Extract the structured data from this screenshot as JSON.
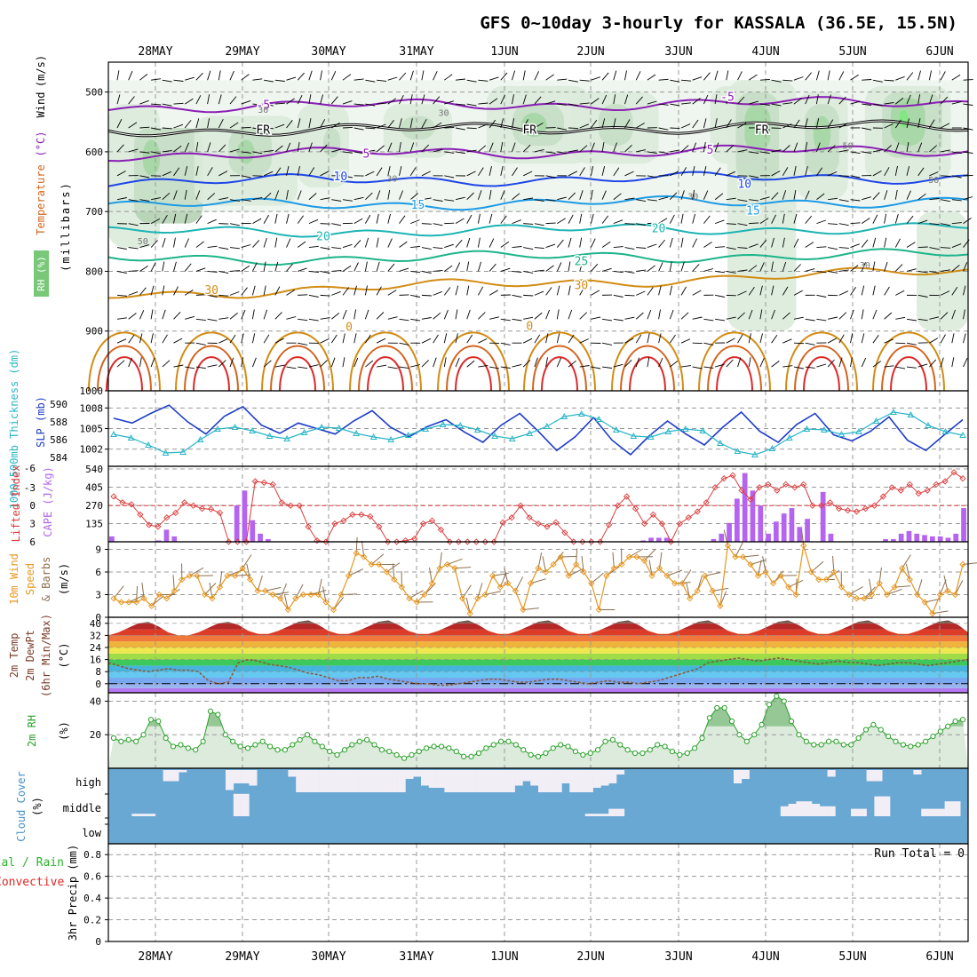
{
  "title": "GFS 0~10day 3-hourly for KASSALA (36.5E, 15.5N)",
  "dates": [
    "28MAY",
    "29MAY",
    "30MAY",
    "31MAY",
    "1JUN",
    "2JUN",
    "3JUN",
    "4JUN",
    "5JUN",
    "6JUN"
  ],
  "colors": {
    "purple": "#8a1eb4",
    "blue": "#1e46e6",
    "lightblue": "#1e9be6",
    "teal": "#1eb4b4",
    "green": "#1eb48a",
    "orange": "#d28c14",
    "darkorange": "#d2641e",
    "red": "#dc2828",
    "rh_light": "#dcebdc",
    "rh_mid": "#b4d2b4",
    "rh_dark": "#78c878",
    "rh_bright": "#32e632",
    "slp": "#1e3cc8",
    "thickness": "#28b4c8",
    "li": "#dc3c3c",
    "cape": "#b464f0",
    "wind": "#e6961e",
    "barb": "#8c6e50",
    "dewpt": "#8c5a3c",
    "rh2m": "#28a028",
    "cloud_bg": "#6aa8d4",
    "cloud_fg": "#f2eef6",
    "precip_rain": "#28b428",
    "precip_conv": "#dc2828"
  },
  "chart_data": [
    {
      "type": "heatmap",
      "panel": "upper-air",
      "ylabel_parts": [
        "RH (%)",
        "Temperature",
        "(°C)",
        "Wind",
        "(m/s)"
      ],
      "ylabel_units": "(millibars)",
      "yticks": [
        500,
        600,
        700,
        800,
        900,
        1000
      ],
      "ylim": [
        1000,
        450
      ],
      "isotherm_labels": [
        "-5",
        "-5",
        "FR",
        "FR",
        "FR",
        "5",
        "5",
        "10",
        "10",
        "15",
        "15",
        "20",
        "20",
        "25",
        "30",
        "30",
        "0",
        "0"
      ],
      "rh_labels": [
        "30",
        "30",
        "30",
        "30",
        "30",
        "50",
        "50",
        "50"
      ],
      "isotherms_c": [
        -5,
        0,
        5,
        10,
        15,
        20,
        25,
        30,
        35,
        40
      ],
      "isotherm_pressure_mb": {
        "-5": 525,
        "0": 565,
        "5": 605,
        "10": 650,
        "15": 690,
        "20": 735,
        "25": 780,
        "30": 840
      }
    },
    {
      "type": "line",
      "panel": "slp-thickness",
      "ylabel_left": "1000-500mb Thickness (dm)",
      "ylabel_right": "SLP (mb)",
      "yticks_left": [
        584,
        586,
        588,
        590
      ],
      "yticks_right": [
        1002,
        1005,
        1008
      ],
      "series": [
        {
          "name": "SLP (mb)",
          "values": [
            1006.5,
            1005.8,
            1007.2,
            1008.4,
            1006.0,
            1004.2,
            1006.8,
            1008.2,
            1005.5,
            1004.3,
            1005.8,
            1005.0,
            1004.2,
            1006.1,
            1007.6,
            1005.2,
            1003.8,
            1005.3,
            1006.3,
            1004.5,
            1003.0,
            1005.5,
            1007.2,
            1004.6,
            1001.8,
            1003.8,
            1006.6,
            1003.3,
            1001.2,
            1003.9,
            1006.1,
            1004.2,
            1002.6,
            1005.2,
            1007.4,
            1004.6,
            1003.0,
            1005.6,
            1007.2,
            1004.1,
            1003.2,
            1004.6,
            1006.7,
            1003.3,
            1001.8,
            1004.1,
            1006.3
          ]
        },
        {
          "name": "1000-500mb Thickness (dm)",
          "values": [
            586.6,
            586.2,
            585.4,
            584.5,
            584.6,
            586.0,
            587.2,
            587.4,
            587.0,
            586.4,
            586.1,
            586.8,
            587.4,
            587.3,
            586.7,
            586.3,
            586.0,
            586.5,
            587.2,
            587.7,
            587.6,
            587.1,
            586.4,
            586.1,
            586.7,
            587.5,
            588.6,
            588.9,
            588.3,
            587.1,
            586.4,
            586.3,
            586.9,
            587.2,
            587.0,
            585.6,
            584.7,
            584.3,
            585.0,
            586.2,
            587.2,
            587.1,
            586.6,
            586.9,
            588.1,
            589.1,
            588.8,
            587.6,
            586.9,
            586.5
          ]
        }
      ]
    },
    {
      "type": "bar",
      "panel": "cape-li",
      "ylabel_left": "Lifted Index",
      "ylabel_right": "CAPE (J/kg)",
      "yticks_left": [
        -3,
        0,
        3,
        6
      ],
      "yticks_left_labels": [
        "-3",
        "0",
        "3",
        "6"
      ],
      "yticks_left_top": "-6",
      "yticks_right": [
        135,
        270,
        405,
        540
      ],
      "yticks_right_labels": [
        "135",
        "270",
        "405",
        "540"
      ],
      "series": [
        {
          "name": "CAPE (J/kg)",
          "values": [
            40,
            0,
            0,
            0,
            0,
            0,
            10,
            90,
            40,
            0,
            0,
            0,
            0,
            0,
            0,
            0,
            270,
            380,
            160,
            60,
            20,
            0,
            0,
            0,
            0,
            0,
            0,
            0,
            0,
            0,
            0,
            0,
            0,
            0,
            0,
            0,
            0,
            0,
            0,
            0,
            0,
            0,
            0,
            0,
            0,
            0,
            0,
            0,
            0,
            0,
            0,
            0,
            0,
            0,
            0,
            0,
            0,
            0,
            0,
            0,
            0,
            0,
            0,
            0,
            0,
            0,
            0,
            0,
            10,
            30,
            30,
            30,
            0,
            0,
            0,
            0,
            0,
            20,
            60,
            140,
            320,
            510,
            380,
            270,
            60,
            150,
            210,
            250,
            110,
            170,
            0,
            370,
            60,
            0,
            0,
            0,
            0,
            0,
            0,
            20,
            20,
            60,
            80,
            60,
            50,
            40,
            40,
            30,
            60,
            250
          ]
        },
        {
          "name": "Lifted Index",
          "values": [
            -1.5,
            -0.5,
            -0.2,
            1.5,
            3.2,
            3.5,
            2.0,
            1.2,
            -0.5,
            0.0,
            0.5,
            0.6,
            1.2,
            6.0,
            6.0,
            6.0,
            -4.0,
            -3.8,
            -3.5,
            -0.5,
            0.0,
            0.0,
            3.5,
            5.8,
            6.0,
            3.0,
            2.5,
            1.5,
            1.5,
            1.8,
            3.5,
            6.0,
            6.0,
            5.8,
            5.5,
            3.0,
            2.5,
            4.0,
            6.0,
            6.0,
            6.0,
            6.0,
            6.0,
            6.0,
            2.8,
            2.0,
            0.0,
            2.0,
            3.0,
            3.5,
            2.8,
            4.5,
            6.0,
            6.0,
            6.0,
            6.0,
            3.2,
            0.0,
            -1.5,
            0.5,
            3.0,
            1.5,
            3.0,
            6.0,
            3.0,
            2.0,
            1.0,
            -0.5,
            -3.0,
            -4.5,
            -5.0,
            -2.5,
            -1.0,
            -3.0,
            -3.5,
            -2.5,
            -3.5,
            -3.0,
            -3.5,
            0.0,
            0.0,
            -0.5,
            0.5,
            0.8,
            1.0,
            0.5,
            0.0,
            -1.5,
            -3.0,
            -2.5,
            -3.5,
            -2.0,
            -2.5,
            -3.5,
            -4.0,
            -5.5,
            -4.5
          ]
        }
      ]
    },
    {
      "type": "line",
      "panel": "wind10m",
      "ylabel_parts": [
        "10m Wind",
        "Speed",
        "& Barbs",
        "(m/s)"
      ],
      "yticks": [
        0,
        3,
        6,
        9
      ],
      "ylim": [
        0,
        10
      ],
      "series": [
        {
          "name": "10m Wind Speed",
          "values": [
            2.5,
            2.0,
            2.0,
            2.0,
            2.5,
            1.5,
            3.0,
            2.5,
            3.5,
            5.0,
            5.5,
            5.5,
            3.0,
            2.5,
            4.0,
            5.5,
            5.5,
            6.5,
            5.0,
            3.5,
            3.5,
            3.0,
            2.5,
            1.0,
            2.5,
            3.0,
            3.0,
            3.0,
            2.0,
            1.0,
            3.0,
            5.5,
            8.5,
            8.0,
            7.0,
            7.0,
            6.0,
            5.0,
            4.0,
            2.5,
            2.0,
            3.0,
            4.5,
            6.5,
            7.0,
            6.5,
            2.5,
            0.5,
            2.5,
            3.0,
            5.5,
            4.0,
            4.5,
            3.5,
            1.0,
            4.5,
            6.5,
            6.0,
            7.0,
            8.0,
            5.5,
            7.0,
            6.0,
            4.5,
            1.0,
            5.5,
            6.5,
            7.0,
            8.0,
            8.0,
            7.5,
            5.5,
            6.5,
            5.5,
            4.5,
            4.5,
            2.5,
            3.5,
            5.5,
            3.5,
            1.5,
            9.5,
            8.0,
            8.0,
            7.0,
            5.5,
            6.0,
            4.5,
            5.5,
            4.0,
            3.0,
            9.5,
            6.0,
            5.0,
            5.0,
            6.0,
            4.0,
            3.0,
            2.5,
            2.5,
            3.0,
            4.5,
            3.0,
            4.0,
            6.5,
            5.0,
            3.0,
            2.0,
            0.5,
            3.0,
            3.5,
            3.0,
            7.0
          ]
        }
      ]
    },
    {
      "type": "area",
      "panel": "temp2m",
      "ylabel_parts": [
        "2m Temp",
        "2m DewPt",
        "(6hr Min/Max)",
        "(°C)"
      ],
      "yticks": [
        0,
        8,
        16,
        24,
        32,
        40
      ],
      "ylim": [
        -6,
        44
      ],
      "series": [
        {
          "name": "2m Temp",
          "values": [
            32,
            34,
            37,
            40,
            41,
            38,
            34,
            32,
            32,
            34,
            37,
            40,
            41,
            39,
            35,
            33,
            33,
            35,
            38,
            41,
            42,
            39,
            35,
            33,
            33,
            35,
            38,
            41,
            42,
            39,
            35,
            33,
            33,
            35,
            38,
            41,
            42,
            39,
            35,
            33,
            33,
            35,
            38,
            41,
            42,
            39,
            35,
            33,
            33,
            35,
            38,
            41,
            42,
            39,
            35,
            33,
            33,
            35,
            38,
            41,
            42,
            39,
            35,
            33,
            33,
            35,
            38,
            41,
            42,
            39,
            35,
            33,
            33,
            35,
            38,
            41,
            42,
            39,
            35,
            33,
            33,
            35,
            38,
            41,
            42,
            39,
            34
          ]
        },
        {
          "name": "2m DewPt",
          "values": [
            14,
            12,
            10,
            9,
            8,
            9,
            10,
            9,
            9,
            8,
            2,
            0,
            1,
            14,
            16,
            15,
            13,
            12,
            11,
            9,
            7,
            6,
            4,
            2,
            2,
            4,
            4,
            5,
            3,
            2,
            1,
            0,
            0,
            -1,
            -1,
            0,
            1,
            2,
            3,
            3,
            2,
            1,
            1,
            2,
            3,
            3,
            2,
            1,
            0,
            1,
            2,
            1,
            1,
            0,
            1,
            2,
            4,
            6,
            8,
            10,
            14,
            15,
            16,
            17,
            16,
            15,
            16,
            17,
            16,
            15,
            14,
            13,
            14,
            15,
            14,
            14,
            13,
            12,
            13,
            14,
            14,
            13,
            12,
            13,
            14,
            15,
            16
          ]
        }
      ]
    },
    {
      "type": "area",
      "panel": "rh2m",
      "ylabel_parts": [
        "2m RH",
        "(%)"
      ],
      "yticks": [
        20,
        40
      ],
      "ylim": [
        0,
        45
      ],
      "series": [
        {
          "name": "2m RH",
          "values": [
            18,
            16,
            17,
            16,
            20,
            29,
            28,
            18,
            13,
            14,
            12,
            11,
            16,
            34,
            32,
            20,
            16,
            13,
            12,
            14,
            16,
            13,
            11,
            11,
            14,
            17,
            20,
            16,
            13,
            10,
            8,
            11,
            14,
            16,
            17,
            14,
            11,
            10,
            8,
            6,
            8,
            10,
            12,
            13,
            13,
            12,
            10,
            7,
            7,
            9,
            12,
            14,
            16,
            16,
            14,
            11,
            8,
            7,
            9,
            12,
            14,
            13,
            10,
            8,
            9,
            11,
            16,
            17,
            14,
            11,
            9,
            9,
            11,
            14,
            13,
            10,
            8,
            9,
            12,
            18,
            30,
            36,
            36,
            28,
            20,
            16,
            20,
            26,
            38,
            43,
            40,
            28,
            20,
            16,
            14,
            14,
            16,
            16,
            14,
            14,
            18,
            23,
            26,
            23,
            19,
            16,
            14,
            13,
            14,
            16,
            19,
            22,
            25,
            28,
            29
          ]
        }
      ]
    },
    {
      "type": "heatmap",
      "panel": "cloud",
      "ylabel_parts": [
        "Cloud Cover",
        "(%)"
      ],
      "levels": [
        "high",
        "middle",
        "low"
      ],
      "high_fraction": [
        0,
        0,
        0,
        0,
        0,
        0,
        0,
        0.5,
        0.5,
        0.1,
        0,
        0,
        0,
        0,
        0,
        0.9,
        0.6,
        0.6,
        0.7,
        0,
        0,
        0,
        0,
        0.3,
        1,
        1,
        1,
        1,
        1,
        1,
        1,
        1,
        1,
        1,
        1,
        1,
        1,
        1,
        0.4,
        0.3,
        0.7,
        0.8,
        0.8,
        1,
        1,
        1,
        1,
        1,
        1,
        1,
        1,
        1,
        0.7,
        0.5,
        0.7,
        1,
        1,
        1,
        0.6,
        1,
        1,
        1,
        0.8,
        0.7,
        0.6,
        0.2,
        0,
        0,
        0,
        0,
        0,
        0,
        0,
        0,
        0,
        0,
        0,
        0,
        0,
        0,
        0.6,
        0.4,
        0,
        0,
        0,
        0,
        0,
        0,
        0,
        0,
        0,
        0,
        0.3,
        0,
        0,
        0,
        0,
        0.5,
        0.5,
        0,
        0,
        0,
        0,
        0.2,
        0,
        0,
        0,
        0,
        0,
        0
      ],
      "mid_fraction": [
        0,
        0,
        0,
        0.1,
        0.1,
        0.1,
        0,
        0,
        0,
        0,
        0,
        0,
        0,
        0,
        0,
        0,
        0.9,
        0.9,
        0,
        0,
        0,
        0,
        0,
        0,
        0,
        0,
        0,
        0,
        0,
        0,
        0,
        0,
        0,
        0,
        0,
        0,
        0,
        0,
        0,
        0,
        0,
        0,
        0,
        0,
        0,
        0,
        0,
        0,
        0,
        0,
        0,
        0,
        0,
        0,
        0,
        0,
        0,
        0,
        0,
        0,
        0,
        0.1,
        0.1,
        0.1,
        0.3,
        0.3,
        0,
        0,
        0,
        0,
        0,
        0,
        0,
        0,
        0,
        0,
        0,
        0,
        0,
        0,
        0,
        0,
        0,
        0,
        0,
        0,
        0.4,
        0.5,
        0.6,
        0.6,
        0.5,
        0.4,
        0.4,
        0,
        0,
        0.3,
        0.3,
        0,
        0.8,
        0.8,
        0,
        0,
        0,
        0,
        0.3,
        0.3,
        0.3,
        0.6,
        0.6,
        0
      ]
    },
    {
      "type": "bar",
      "panel": "precip",
      "ylabel_parts": [
        "Total / Rain",
        "Convective",
        "3hr Precip (mm)"
      ],
      "yticks": [
        0,
        0.2,
        0.4,
        0.6,
        0.8
      ],
      "yticks_labels": [
        "0",
        "0.2",
        "0.4",
        "0.6",
        "0.8"
      ],
      "ylim": [
        0,
        0.9
      ],
      "annotation": "Run Total = 0",
      "series": [
        {
          "name": "3hr Precip (mm)",
          "values": []
        }
      ]
    }
  ]
}
